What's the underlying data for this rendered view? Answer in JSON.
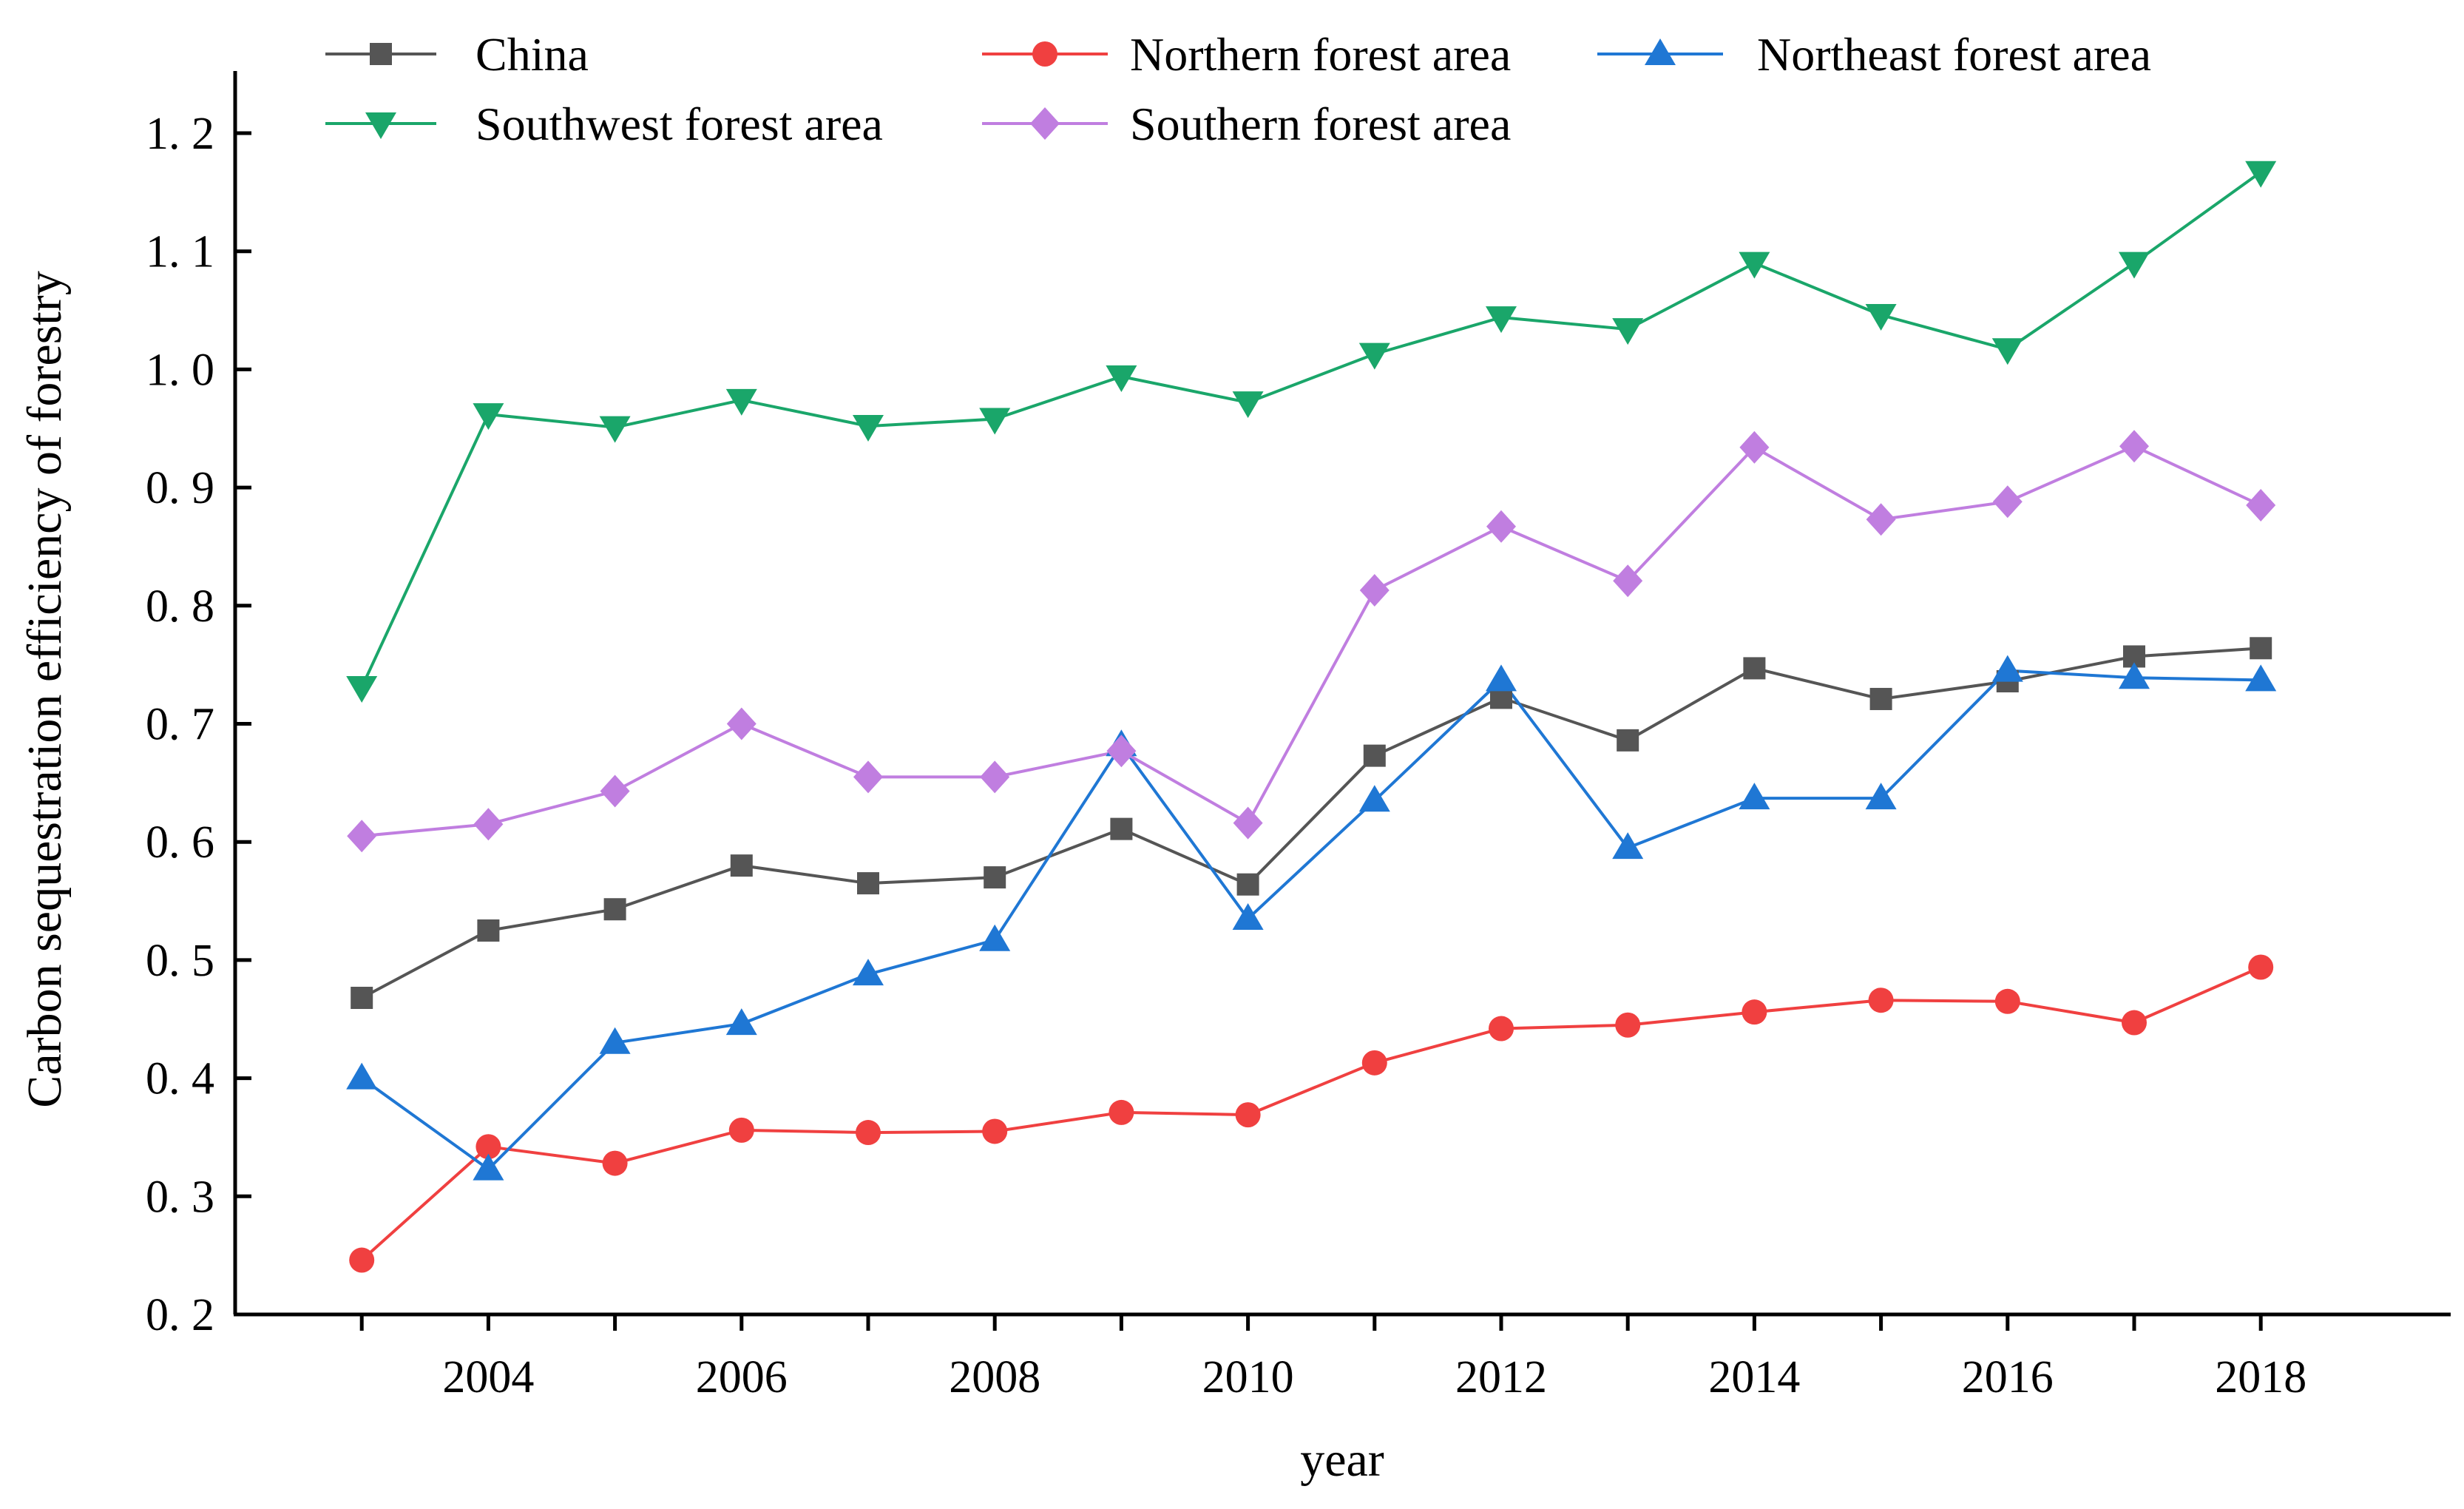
{
  "chart_data": {
    "type": "line",
    "title": "",
    "xlabel": "year",
    "ylabel": "Carbon sequestration efficiency of forestry",
    "xlim": [
      2002,
      2019.5
    ],
    "ylim": [
      0.2,
      1.25
    ],
    "x": [
      2003,
      2004,
      2005,
      2006,
      2007,
      2008,
      2009,
      2010,
      2011,
      2012,
      2013,
      2014,
      2015,
      2016,
      2017,
      2018
    ],
    "x_tick_values": [
      2004,
      2006,
      2008,
      2010,
      2012,
      2014,
      2016,
      2018
    ],
    "x_tick_labels": [
      "2004",
      "2006",
      "2008",
      "2010",
      "2012",
      "2014",
      "2016",
      "2018"
    ],
    "y_tick_values": [
      0.2,
      0.3,
      0.4,
      0.5,
      0.6,
      0.7,
      0.8,
      0.9,
      1.0,
      1.1,
      1.2
    ],
    "y_tick_labels": [
      "0. 2",
      "0. 3",
      "0. 4",
      "0. 5",
      "0. 6",
      "0. 7",
      "0. 8",
      "0. 9",
      "1. 0",
      "1. 1",
      "1. 2"
    ],
    "grid": false,
    "legend_position": "top",
    "series": [
      {
        "name": "China",
        "color": "#555555",
        "marker": "square",
        "values": [
          0.468,
          0.525,
          0.543,
          0.58,
          0.565,
          0.57,
          0.611,
          0.564,
          0.673,
          0.722,
          0.686,
          0.747,
          0.721,
          0.736,
          0.757,
          0.764
        ]
      },
      {
        "name": "Northern forest area",
        "color": "#f04040",
        "marker": "circle",
        "values": [
          0.246,
          0.342,
          0.328,
          0.356,
          0.354,
          0.355,
          0.371,
          0.369,
          0.413,
          0.442,
          0.445,
          0.456,
          0.466,
          0.465,
          0.447,
          0.494
        ]
      },
      {
        "name": "Northeast forest area",
        "color": "#1f77d4",
        "marker": "triangle-up",
        "values": [
          0.4,
          0.323,
          0.43,
          0.446,
          0.488,
          0.517,
          0.682,
          0.535,
          0.635,
          0.737,
          0.595,
          0.637,
          0.637,
          0.745,
          0.739,
          0.737
        ]
      },
      {
        "name": "Southwest forest area",
        "color": "#1aa66a",
        "marker": "triangle-down",
        "values": [
          0.731,
          0.962,
          0.951,
          0.974,
          0.952,
          0.958,
          0.994,
          0.972,
          1.013,
          1.044,
          1.034,
          1.09,
          1.046,
          1.017,
          1.09,
          1.167
        ]
      },
      {
        "name": "Southern forest area",
        "color": "#c07ee0",
        "marker": "diamond",
        "values": [
          0.605,
          0.615,
          0.643,
          0.7,
          0.655,
          0.655,
          0.677,
          0.616,
          0.813,
          0.867,
          0.821,
          0.934,
          0.873,
          0.888,
          0.935,
          0.885
        ]
      }
    ]
  }
}
